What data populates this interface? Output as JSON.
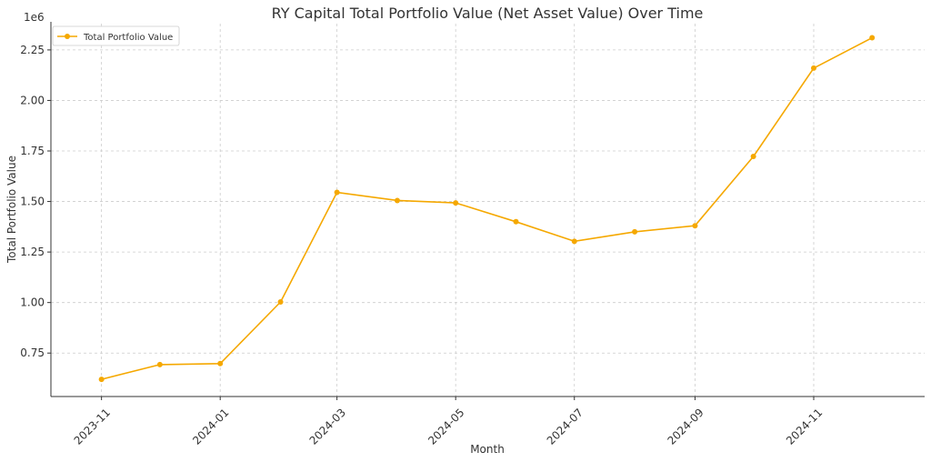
{
  "chart_data": {
    "type": "line",
    "title": "RY Capital Total Portfolio Value (Net Asset Value) Over Time",
    "xlabel": "Month",
    "ylabel": "Total Portfolio Value",
    "y_offset_label": "1e6",
    "x": [
      "2023-11-01",
      "2023-12-01",
      "2024-01-01",
      "2024-02-01",
      "2024-03-01",
      "2024-04-01",
      "2024-05-01",
      "2024-06-01",
      "2024-07-01",
      "2024-08-01",
      "2024-09-01",
      "2024-10-01",
      "2024-11-01",
      "2024-12-01"
    ],
    "x_ticks": [
      "2023-11",
      "2024-01",
      "2024-03",
      "2024-05",
      "2024-07",
      "2024-09",
      "2024-11"
    ],
    "y_ticks": [
      "0.75",
      "1.00",
      "1.25",
      "1.50",
      "1.75",
      "2.00",
      "2.25"
    ],
    "ylim": [
      0.535,
      2.38
    ],
    "grid": true,
    "legend_position": "top-left",
    "series": [
      {
        "name": "Total Portfolio Value",
        "color": "#f5a800",
        "values": [
          0.62,
          0.693,
          0.698,
          1.003,
          1.545,
          1.505,
          1.493,
          1.4,
          1.303,
          1.35,
          1.38,
          1.723,
          2.16,
          2.31
        ]
      }
    ]
  }
}
